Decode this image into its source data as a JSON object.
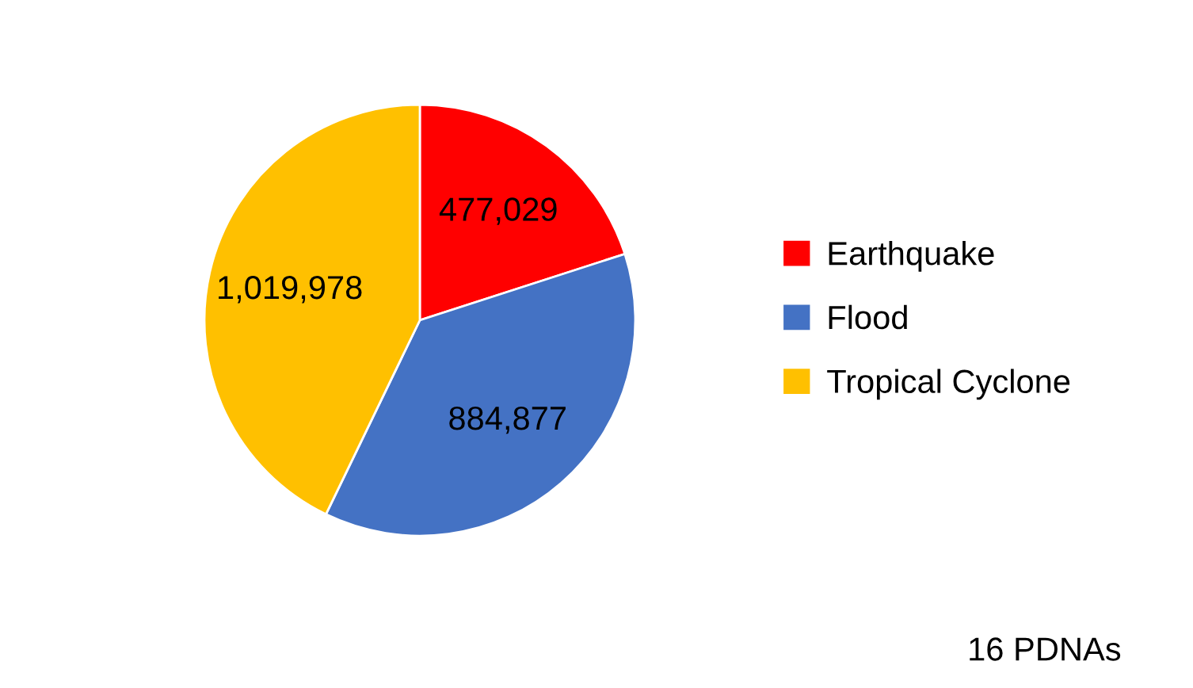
{
  "chart_data": {
    "type": "pie",
    "categories": [
      "Earthquake",
      "Flood",
      "Tropical Cyclone"
    ],
    "values": [
      477029,
      884877,
      1019978
    ],
    "colors": [
      "#ff0000",
      "#4472c4",
      "#ffc000"
    ],
    "value_labels": [
      "477,029",
      "884,877",
      "1,019,978"
    ],
    "legend": "right",
    "annotations": [
      "16 PDNAs"
    ]
  }
}
